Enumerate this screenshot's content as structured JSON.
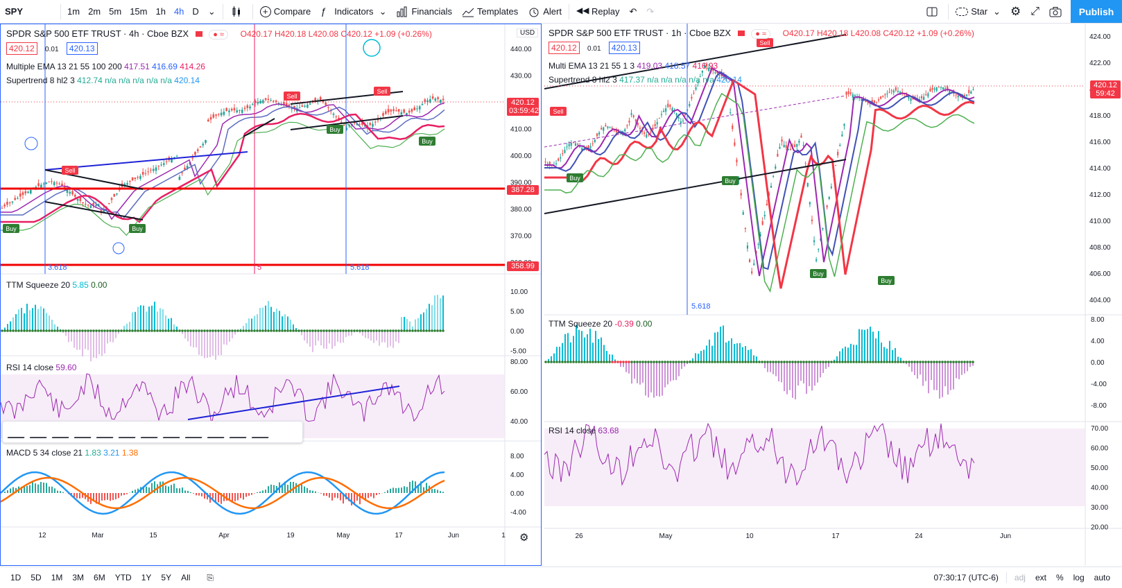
{
  "toolbar": {
    "symbol": "SPY",
    "timeframes": [
      "1m",
      "2m",
      "5m",
      "15m",
      "1h",
      "4h",
      "D"
    ],
    "active_tf": "4h",
    "compare": "Compare",
    "indicators": "Indicators",
    "financials": "Financials",
    "templates": "Templates",
    "alert": "Alert",
    "replay": "Replay",
    "star": "Star",
    "publish": "Publish"
  },
  "left": {
    "title": "SPDR S&P 500 ETF TRUST · 4h · Cboe BZX",
    "ohlc": "O420.17 H420.18 L420.08 C420.12 +1.09 (+0.26%)",
    "bid": "420.12",
    "spread": "0.01",
    "ask": "420.13",
    "ema_label": "Multiple EMA 13 21 55 100 200",
    "ema_vals": [
      "417.51",
      "416.69",
      "414.26"
    ],
    "st_label": "Supertrend 8 hl2 3",
    "st_vals": "412.74 n/a n/a n/a n/a n/a",
    "st_last": "420.14",
    "currency": "USD",
    "price_ticks": [
      "440.00",
      "430.00",
      "420.00",
      "410.00",
      "400.00",
      "390.00",
      "380.00",
      "370.00",
      "360.00"
    ],
    "last_price": "420.12",
    "countdown": "03:59:42",
    "line1": "387.28",
    "line2": "358.99",
    "fib1": "3.618",
    "fib2": "5",
    "fib3": "5.618",
    "ttm_label": "TTM Squeeze 20",
    "ttm_v1": "5.85",
    "ttm_v2": "0.00",
    "ttm_ticks": [
      "10.00",
      "5.00",
      "0.00",
      "-5.00"
    ],
    "rsi_label": "RSI 14 close",
    "rsi_val": "59.60",
    "rsi_ticks": [
      "80.00",
      "60.00",
      "40.00"
    ],
    "macd_label": "MACD 5 34 close 21",
    "macd_v1": "1.83",
    "macd_v2": "3.21",
    "macd_v3": "1.38",
    "macd_ticks": [
      "8.00",
      "4.00",
      "0.00",
      "-4.00"
    ],
    "dates": [
      "12",
      "Mar",
      "15",
      "Apr",
      "19",
      "May",
      "17",
      "Jun",
      "1"
    ]
  },
  "right": {
    "title": "SPDR S&P 500 ETF TRUST · 1h · Cboe BZX",
    "ohlc": "O420.17 H420.18 L420.08 C420.12 +1.09 (+0.26%)",
    "bid": "420.12",
    "spread": "0.01",
    "ask": "420.13",
    "ema_label": "Multi EMA 13 21 55 1 3",
    "ema_vals": [
      "419.03",
      "418.57",
      "416.93"
    ],
    "st_label": "Supertrend 8 hl2 3",
    "st_vals": "417.37 n/a n/a n/a n/a n/a",
    "st_last": "420.14",
    "price_ticks": [
      "424.00",
      "422.00",
      "420.00",
      "418.00",
      "416.00",
      "414.00",
      "412.00",
      "410.00",
      "408.00",
      "406.00",
      "404.00"
    ],
    "last_price": "420.12",
    "countdown": "59:42",
    "fib": "5.618",
    "ttm_label": "TTM Squeeze 20",
    "ttm_v1": "-0.39",
    "ttm_v2": "0.00",
    "ttm_ticks": [
      "8.00",
      "4.00",
      "0.00",
      "-4.00",
      "-8.00"
    ],
    "rsi_label": "RSI 14 close",
    "rsi_val": "63.68",
    "rsi_ticks": [
      "70.00",
      "60.00",
      "50.00",
      "40.00",
      "30.00",
      "20.00"
    ],
    "dates": [
      "26",
      "May",
      "10",
      "17",
      "24",
      "Jun"
    ]
  },
  "bottom": {
    "ranges": [
      "1D",
      "5D",
      "1M",
      "3M",
      "6M",
      "YTD",
      "1Y",
      "5Y",
      "All"
    ],
    "time": "07:30:17 (UTC-6)",
    "opts": [
      "adj",
      "ext",
      "%",
      "log",
      "auto"
    ]
  },
  "colors": {
    "accent": "#2962ff",
    "sell": "#f23645",
    "buy": "#22ab94",
    "purple": "#9c27b0",
    "cyan": "#00bcd4"
  }
}
